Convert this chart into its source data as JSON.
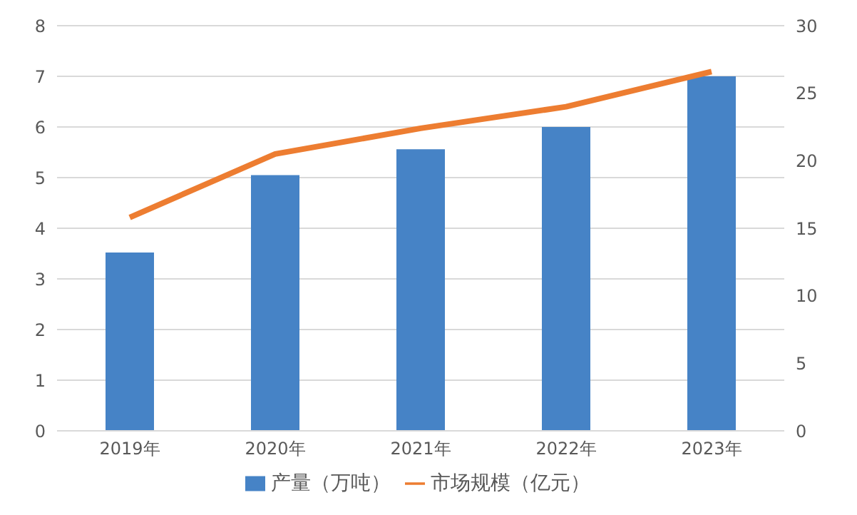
{
  "chart_data": {
    "type": "bar",
    "categories": [
      "2019年",
      "2020年",
      "2021年",
      "2022年",
      "2023年"
    ],
    "series": [
      {
        "name": "产量（万吨）",
        "color": "#4683c6",
        "values": [
          3.52,
          5.05,
          5.56,
          6.0,
          7.0
        ]
      },
      {
        "name": "市场规模（亿元）",
        "type": "line",
        "axis": "y2",
        "color": "#ed7d31",
        "values": [
          15.8,
          20.5,
          22.4,
          24.0,
          26.6
        ]
      }
    ],
    "ylim": [
      0,
      8
    ],
    "yticks": [
      0,
      1,
      2,
      3,
      4,
      5,
      6,
      7,
      8
    ],
    "y2lim": [
      0,
      30
    ],
    "y2ticks": [
      0,
      5,
      10,
      15,
      20,
      25,
      30
    ],
    "grid": "y",
    "legend": "bottom",
    "marker": "none"
  }
}
